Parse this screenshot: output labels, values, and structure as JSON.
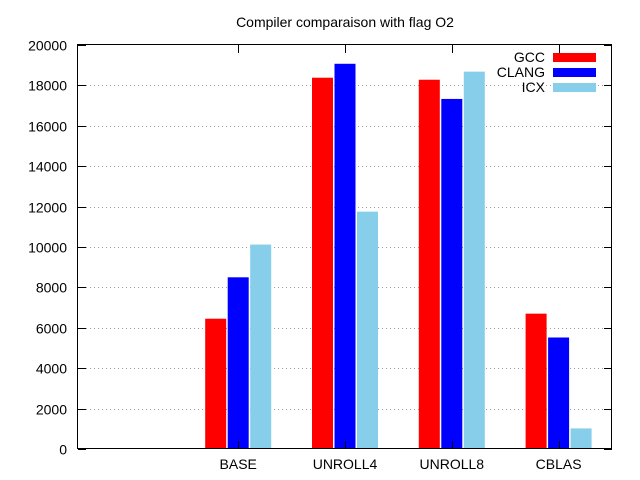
{
  "chart_data": {
    "type": "bar",
    "title": "Compiler comparaison with flag O2",
    "xlabel": "",
    "ylabel": "",
    "categories": [
      "BASE",
      "UNROLL4",
      "UNROLL8",
      "CBLAS"
    ],
    "series": [
      {
        "name": "GCC",
        "color": "#ff0000",
        "values": [
          6450,
          18380,
          18280,
          6700
        ]
      },
      {
        "name": "CLANG",
        "color": "#0000ff",
        "values": [
          8500,
          19070,
          17330,
          5520
        ]
      },
      {
        "name": "ICX",
        "color": "#87ceeb",
        "values": [
          10120,
          11750,
          18680,
          1020
        ]
      }
    ],
    "ylim": [
      0,
      20000
    ],
    "yticks": [
      0,
      2000,
      4000,
      6000,
      8000,
      10000,
      12000,
      14000,
      16000,
      18000,
      20000
    ],
    "grid": "y-dotted",
    "legend_position": "top-right"
  }
}
